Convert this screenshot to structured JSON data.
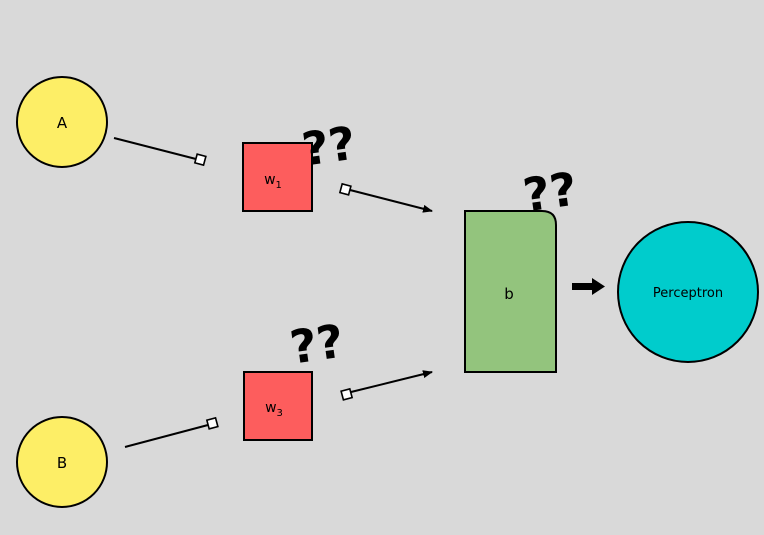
{
  "nodes": {
    "input_a": {
      "label": "A",
      "color": "#fdee66"
    },
    "input_b": {
      "label": "B",
      "color": "#fdee66"
    },
    "weight_1": {
      "label": "w",
      "subscript": "1",
      "color": "#fd5d5d"
    },
    "weight_3": {
      "label": "w",
      "subscript": "3",
      "color": "#fd5d5d"
    },
    "bias": {
      "label": "b",
      "color": "#93c47d"
    },
    "output": {
      "label": "Perceptron",
      "color": "#00cccc"
    }
  },
  "annotations": {
    "weight_1_unknown": "??",
    "weight_3_unknown": "??",
    "bias_unknown": "??"
  },
  "background": "#d9d9d9"
}
